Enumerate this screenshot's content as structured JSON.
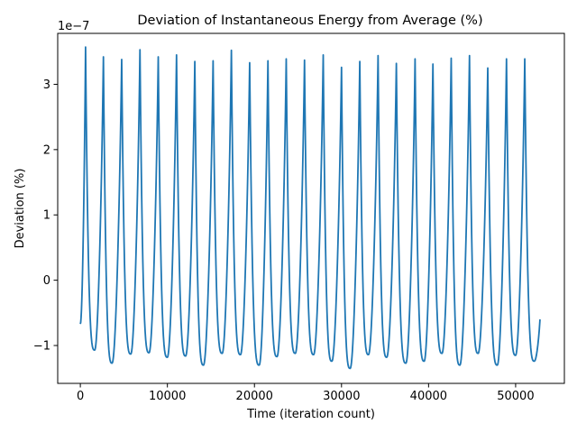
{
  "chart_data": {
    "type": "line",
    "title": "Deviation of Instantaneous Energy from Average (%)",
    "xlabel": "Time (iteration count)",
    "ylabel": "Deviation (%)",
    "y_offset_label": "1e−7",
    "y_scale": 1e-07,
    "xlim": [
      -2600,
      55600
    ],
    "ylim": [
      -1.58,
      3.78
    ],
    "xticks": [
      0,
      10000,
      20000,
      30000,
      40000,
      50000
    ],
    "xtick_labels": [
      "0",
      "10000",
      "20000",
      "30000",
      "40000",
      "50000"
    ],
    "yticks": [
      -1,
      0,
      1,
      2,
      3
    ],
    "ytick_labels": [
      "−1",
      "0",
      "1",
      "2",
      "3"
    ],
    "grid": false,
    "series_color": "#1f77b4",
    "peaks": {
      "x": [
        600,
        2650,
        4750,
        6850,
        8950,
        11050,
        13150,
        15250,
        17350,
        19450,
        21550,
        23650,
        25750,
        27900,
        30000,
        32100,
        34200,
        36300,
        38450,
        40500,
        42600,
        44700,
        46800,
        48950,
        51050
      ],
      "y": [
        3.57,
        3.42,
        3.38,
        3.53,
        3.42,
        3.45,
        3.35,
        3.36,
        3.52,
        3.33,
        3.36,
        3.39,
        3.37,
        3.45,
        3.26,
        3.35,
        3.44,
        3.32,
        3.39,
        3.31,
        3.4,
        3.44,
        3.25,
        3.39,
        3.39
      ]
    },
    "troughs": {
      "x": [
        1650,
        3650,
        5800,
        7900,
        10000,
        12100,
        14150,
        16300,
        18400,
        20550,
        22600,
        24700,
        26800,
        28900,
        31000,
        33100,
        35200,
        37400,
        39500,
        41550,
        43600,
        45700,
        47900,
        50000,
        52150
      ],
      "y": [
        -1.07,
        -1.27,
        -1.13,
        -1.11,
        -1.18,
        -1.16,
        -1.3,
        -1.12,
        -1.14,
        -1.3,
        -1.17,
        -1.12,
        -1.14,
        -1.24,
        -1.35,
        -1.14,
        -1.18,
        -1.27,
        -1.24,
        -1.12,
        -1.3,
        -1.12,
        -1.3,
        -1.15,
        -1.24
      ]
    },
    "start": {
      "x": 0,
      "y": -0.67
    },
    "end": {
      "x": 52800,
      "y": -0.6
    }
  }
}
